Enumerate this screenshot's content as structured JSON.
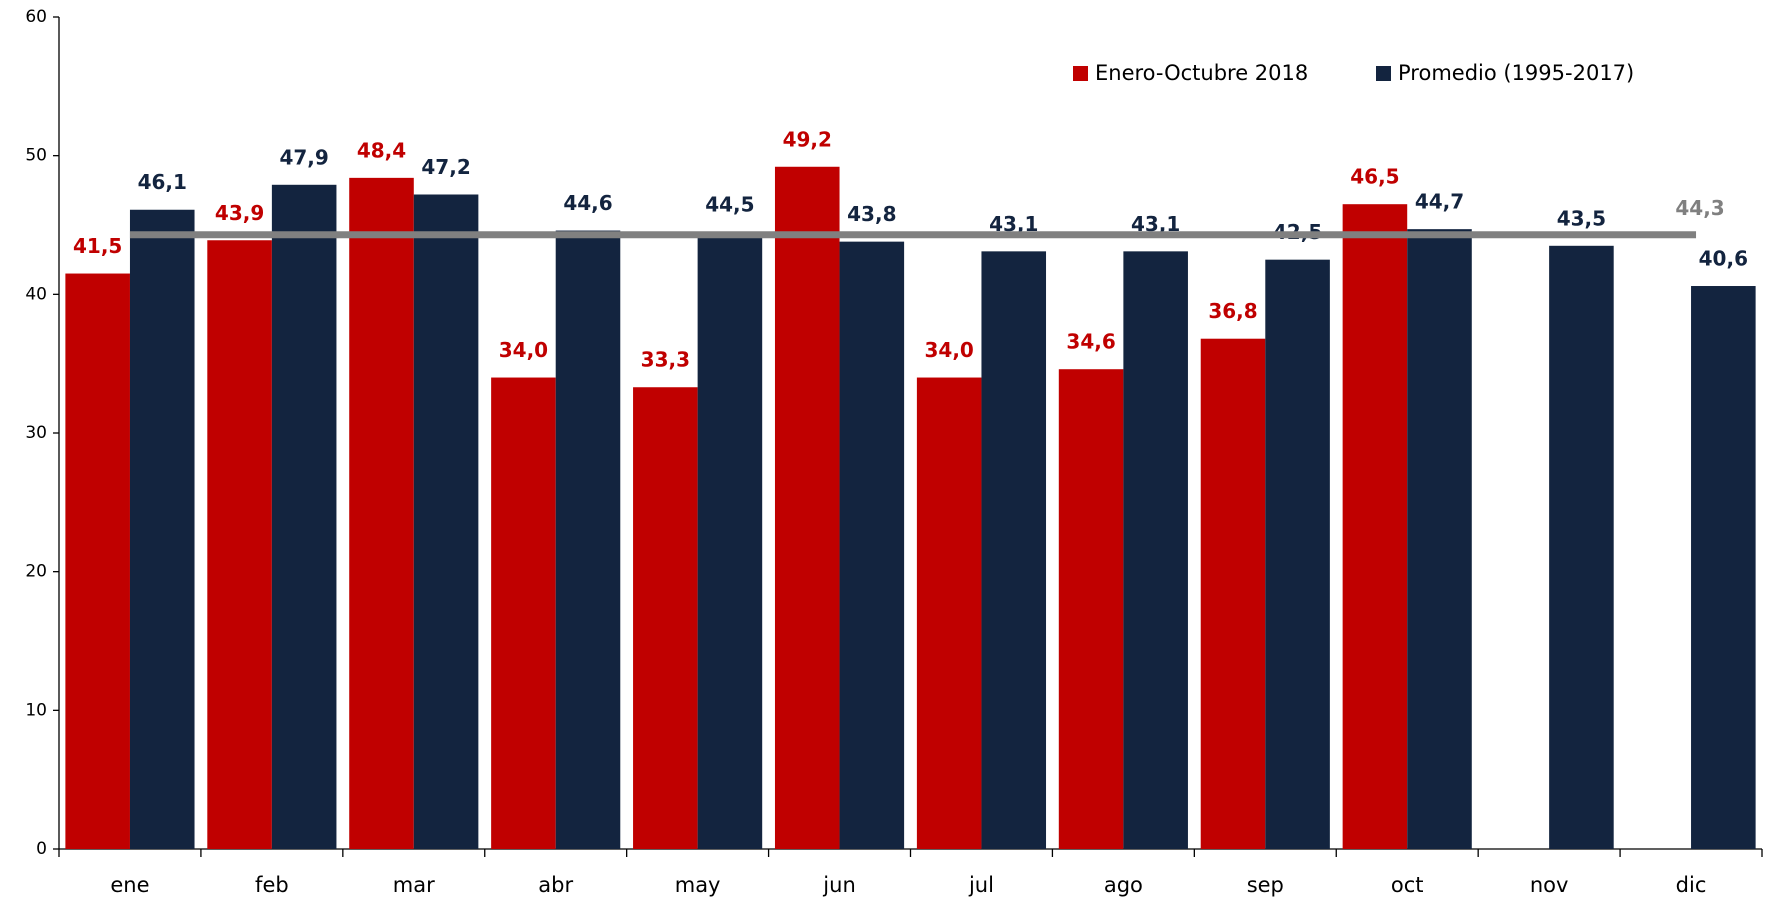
{
  "chart_data": {
    "type": "bar",
    "categories": [
      "ene",
      "feb",
      "mar",
      "abr",
      "may",
      "jun",
      "jul",
      "ago",
      "sep",
      "oct",
      "nov",
      "dic"
    ],
    "series": [
      {
        "name": "Enero-Octubre 2018",
        "color": "#c00000",
        "values": [
          41.5,
          43.9,
          48.4,
          34.0,
          33.3,
          49.2,
          34.0,
          34.6,
          36.8,
          46.5,
          null,
          null
        ],
        "value_labels": [
          "41,5",
          "43,9",
          "48,4",
          "34,0",
          "33,3",
          "49,2",
          "34,0",
          "34,6",
          "36,8",
          "46,5",
          null,
          null
        ]
      },
      {
        "name": "Promedio (1995-2017)",
        "color": "#13243f",
        "values": [
          46.1,
          47.9,
          47.2,
          44.6,
          44.5,
          43.8,
          43.1,
          43.1,
          42.5,
          44.7,
          43.5,
          40.6
        ],
        "value_labels": [
          "46,1",
          "47,9",
          "47,2",
          "44,6",
          "44,5",
          "43,8",
          "43,1",
          "43,1",
          "42,5",
          "44,7",
          "43,5",
          "40,6"
        ]
      }
    ],
    "reference_line": {
      "value": 44.3,
      "label": "44,3",
      "color": "#808080"
    },
    "ylim": [
      0,
      60
    ],
    "yticks": [
      0,
      10,
      20,
      30,
      40,
      50,
      60
    ],
    "grid": false,
    "legend": "top-right"
  }
}
